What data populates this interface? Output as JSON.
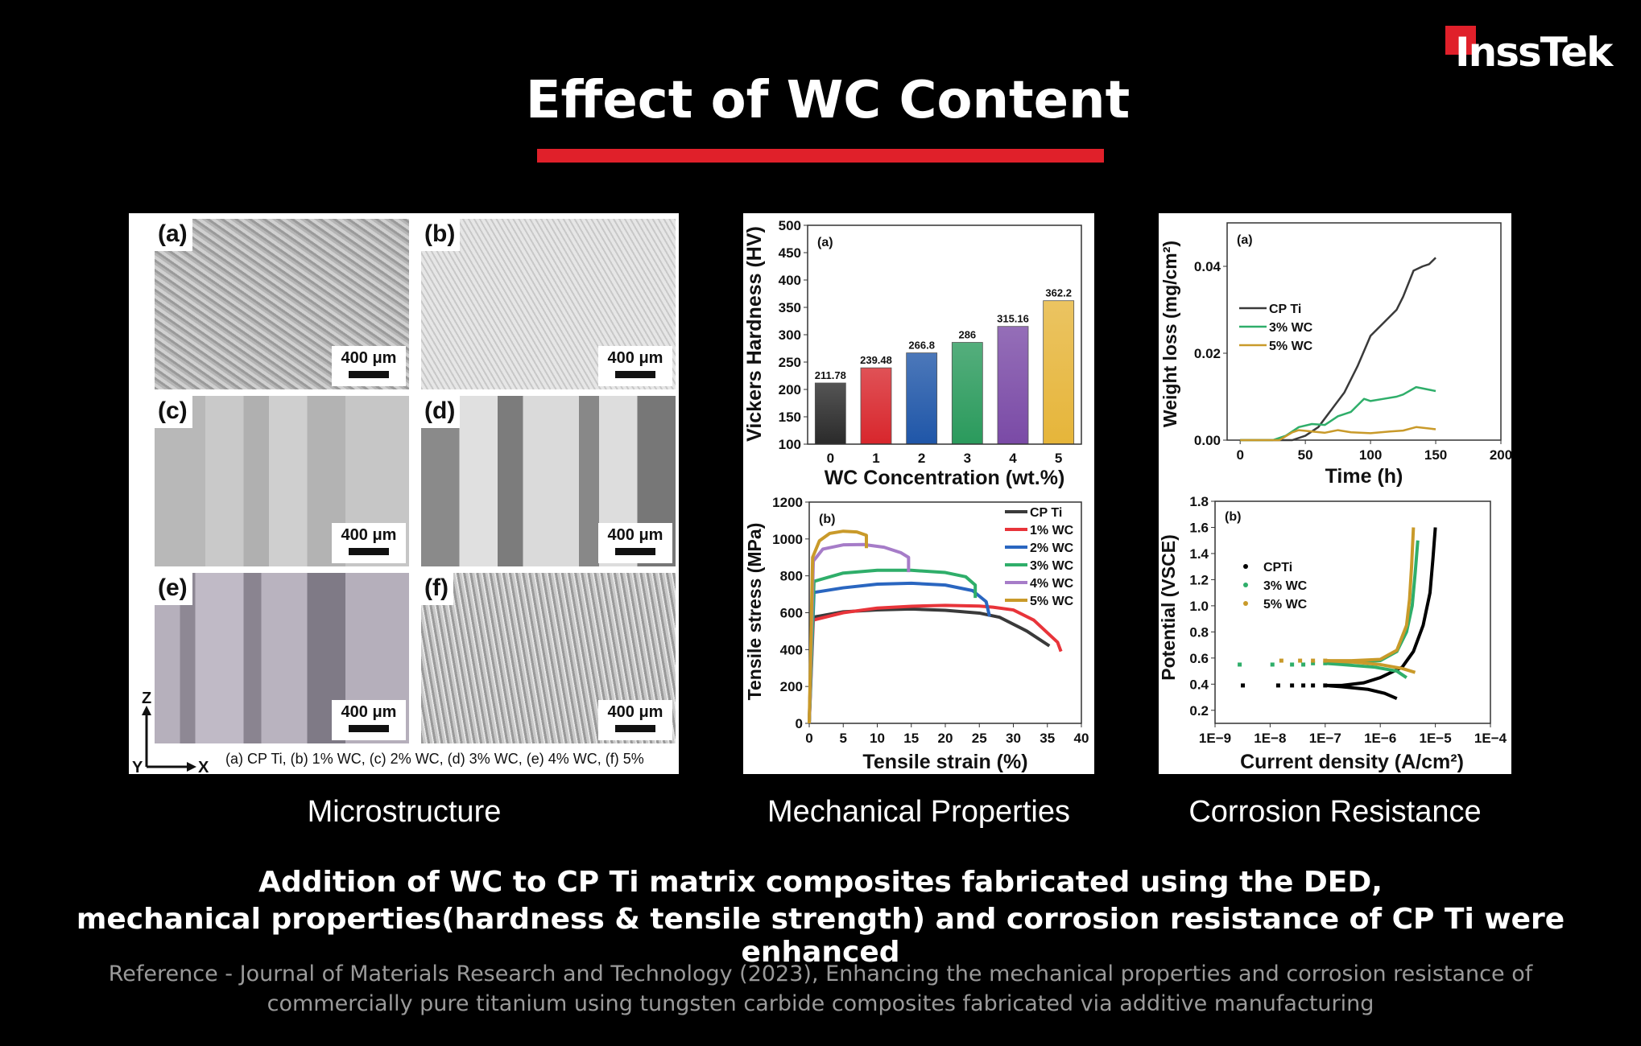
{
  "brand": {
    "logo_text": "InssTek",
    "accent": "#e0202a"
  },
  "title": "Effect of WC Content",
  "microstructure": {
    "tiles": [
      {
        "label": "(a)",
        "scale": "400 μm"
      },
      {
        "label": "(b)",
        "scale": "400 μm"
      },
      {
        "label": "(c)",
        "scale": "400 μm"
      },
      {
        "label": "(d)",
        "scale": "400 μm"
      },
      {
        "label": "(e)",
        "scale": "400 μm"
      },
      {
        "label": "(f)",
        "scale": "400 μm"
      }
    ],
    "axes": {
      "z": "Z",
      "y": "Y",
      "x": "X"
    },
    "caption": "(a) CP Ti, (b) 1% WC, (c) 2% WC, (d) 3% WC, (e) 4% WC, (f) 5%"
  },
  "section_labels": [
    "Microstructure",
    "Mechanical Properties",
    "Corrosion Resistance"
  ],
  "summary": [
    "Addition of WC to CP Ti matrix composites fabricated using the DED,",
    "mechanical properties(hardness & tensile strength) and corrosion resistance of CP Ti were enhanced"
  ],
  "reference": [
    "Reference - Journal of Materials Research and Technology (2023), Enhancing the mechanical properties and corrosion resistance of",
    "commercially pure titanium using tungsten carbide composites fabricated via additive manufacturing"
  ],
  "chart_data": [
    {
      "type": "bar",
      "panel": "(a)",
      "categories": [
        "0",
        "1",
        "2",
        "3",
        "4",
        "5"
      ],
      "values": [
        211.78,
        239.48,
        266.8,
        286,
        315.16,
        362.2
      ],
      "data_labels": [
        "211.78",
        "239.48",
        "266.8",
        "286",
        "315.16",
        "362.2"
      ],
      "colors": [
        "#2a2a2a",
        "#d8262c",
        "#1f56a8",
        "#2a9a5c",
        "#7a4aa6",
        "#e6b53a"
      ],
      "xlabel": "WC Concentration (wt.%)",
      "ylabel": "Vickers Hardness (HV)",
      "ylim": [
        100,
        500
      ],
      "yticks": [
        100,
        150,
        200,
        250,
        300,
        350,
        400,
        450,
        500
      ]
    },
    {
      "type": "line",
      "panel": "(b)",
      "xlabel": "Tensile strain (%)",
      "ylabel": "Tensile stress (MPa)",
      "xlim": [
        0,
        40
      ],
      "ylim": [
        0,
        1200
      ],
      "xticks": [
        0,
        5,
        10,
        15,
        20,
        25,
        30,
        35,
        40
      ],
      "yticks": [
        0,
        200,
        400,
        600,
        800,
        1000,
        1200
      ],
      "legend": "top-right",
      "series": [
        {
          "name": "CP Ti",
          "color": "#3a3a3a",
          "points": [
            [
              0,
              0
            ],
            [
              0.3,
              400
            ],
            [
              0.5,
              575
            ],
            [
              5,
              605
            ],
            [
              10,
              615
            ],
            [
              15,
              620
            ],
            [
              20,
              613
            ],
            [
              25,
              598
            ],
            [
              28,
              575
            ],
            [
              32,
              500
            ],
            [
              35.3,
              420
            ]
          ]
        },
        {
          "name": "1% WC",
          "color": "#e8343a",
          "points": [
            [
              0,
              0
            ],
            [
              0.6,
              560
            ],
            [
              5,
              600
            ],
            [
              10,
              625
            ],
            [
              15,
              635
            ],
            [
              20,
              640
            ],
            [
              25,
              636
            ],
            [
              27,
              630
            ],
            [
              30,
              615
            ],
            [
              33,
              560
            ],
            [
              36.5,
              440
            ],
            [
              37,
              390
            ]
          ]
        },
        {
          "name": "2% WC",
          "color": "#2a66c0",
          "points": [
            [
              0,
              0
            ],
            [
              0.7,
              710
            ],
            [
              5,
              735
            ],
            [
              10,
              755
            ],
            [
              15,
              760
            ],
            [
              20,
              750
            ],
            [
              24,
              720
            ],
            [
              26,
              660
            ],
            [
              26.5,
              580
            ]
          ]
        },
        {
          "name": "3% WC",
          "color": "#2fae6a",
          "points": [
            [
              0,
              0
            ],
            [
              0.7,
              770
            ],
            [
              5,
              815
            ],
            [
              10,
              830
            ],
            [
              15,
              830
            ],
            [
              20,
              818
            ],
            [
              23,
              795
            ],
            [
              24.4,
              750
            ],
            [
              24.4,
              680
            ]
          ]
        },
        {
          "name": "4% WC",
          "color": "#a67cc8",
          "points": [
            [
              0,
              0
            ],
            [
              0.6,
              880
            ],
            [
              2,
              945
            ],
            [
              5,
              968
            ],
            [
              8,
              970
            ],
            [
              11,
              955
            ],
            [
              13.5,
              925
            ],
            [
              14.6,
              900
            ],
            [
              14.6,
              820
            ]
          ]
        },
        {
          "name": "5% WC",
          "color": "#c99a2a",
          "points": [
            [
              0,
              0
            ],
            [
              0.5,
              900
            ],
            [
              1.5,
              990
            ],
            [
              3,
              1030
            ],
            [
              5,
              1042
            ],
            [
              7,
              1038
            ],
            [
              8.4,
              1020
            ],
            [
              8.4,
              950
            ]
          ]
        }
      ]
    },
    {
      "type": "line",
      "panel": "(a)",
      "xlabel": "Time (h)",
      "ylabel": "Weight loss (mg/cm²)",
      "xlim": [
        -10,
        200
      ],
      "ylim": [
        0,
        0.05
      ],
      "xticks": [
        0,
        50,
        100,
        150,
        200
      ],
      "yticks": [
        "0.00",
        "0.02",
        "0.04"
      ],
      "legend": "left",
      "series": [
        {
          "name": "CP Ti",
          "color": "#3a3a3a",
          "points": [
            [
              0,
              0
            ],
            [
              40,
              0
            ],
            [
              50,
              0.001
            ],
            [
              60,
              0.003
            ],
            [
              70,
              0.007
            ],
            [
              80,
              0.011
            ],
            [
              90,
              0.017
            ],
            [
              100,
              0.024
            ],
            [
              110,
              0.027
            ],
            [
              120,
              0.03
            ],
            [
              125,
              0.033
            ],
            [
              133,
              0.039
            ],
            [
              140,
              0.04
            ],
            [
              145,
              0.0405
            ],
            [
              150,
              0.042
            ]
          ]
        },
        {
          "name": "3% WC",
          "color": "#2fae6a",
          "points": [
            [
              0,
              0
            ],
            [
              25,
              0
            ],
            [
              35,
              0.001
            ],
            [
              45,
              0.003
            ],
            [
              55,
              0.0037
            ],
            [
              65,
              0.0035
            ],
            [
              75,
              0.0055
            ],
            [
              85,
              0.0065
            ],
            [
              95,
              0.0095
            ],
            [
              100,
              0.009
            ],
            [
              110,
              0.0095
            ],
            [
              120,
              0.01
            ],
            [
              125,
              0.0105
            ],
            [
              135,
              0.0122
            ],
            [
              150,
              0.0113
            ]
          ]
        },
        {
          "name": "5% WC",
          "color": "#c99a2a",
          "points": [
            [
              0,
              0
            ],
            [
              30,
              0
            ],
            [
              40,
              0.0018
            ],
            [
              45,
              0.0023
            ],
            [
              55,
              0.002
            ],
            [
              65,
              0.0017
            ],
            [
              75,
              0.0023
            ],
            [
              85,
              0.0018
            ],
            [
              100,
              0.0016
            ],
            [
              115,
              0.002
            ],
            [
              125,
              0.0022
            ],
            [
              135,
              0.003
            ],
            [
              150,
              0.0025
            ]
          ]
        }
      ]
    },
    {
      "type": "scatter",
      "panel": "(b)",
      "xlabel": "Current density (A/cm²)",
      "ylabel": "Potential (VSCE)",
      "xscale": "log",
      "xlim": [
        1e-09,
        0.0001
      ],
      "ylim": [
        0.1,
        1.8
      ],
      "xticks": [
        "1E−9",
        "1E−8",
        "1E−7",
        "1E−6",
        "1E−5",
        "1E−4"
      ],
      "yticks": [
        "0.2",
        "0.4",
        "0.6",
        "0.8",
        "1.0",
        "1.2",
        "1.4",
        "1.6",
        "1.8"
      ],
      "legend": "left",
      "series": [
        {
          "name": "CPTi",
          "color": "#000000",
          "points": [
            [
              3.2e-09,
              0.39
            ],
            [
              1.4e-08,
              0.39
            ],
            [
              2.5e-08,
              0.39
            ],
            [
              4e-08,
              0.39
            ],
            [
              6e-08,
              0.39
            ],
            [
              1e-07,
              0.39
            ],
            [
              2e-07,
              0.39
            ],
            [
              5e-07,
              0.41
            ],
            [
              1e-06,
              0.45
            ],
            [
              2.5e-06,
              0.53
            ],
            [
              4e-06,
              0.65
            ],
            [
              6e-06,
              0.85
            ],
            [
              8e-06,
              1.1
            ],
            [
              9e-06,
              1.35
            ],
            [
              1e-05,
              1.6
            ]
          ],
          "cathodic": [
            [
              2e-07,
              0.38
            ],
            [
              6e-07,
              0.36
            ],
            [
              1.2e-06,
              0.33
            ],
            [
              2e-06,
              0.29
            ]
          ]
        },
        {
          "name": "3% WC",
          "color": "#2fae6a",
          "points": [
            [
              2.8e-09,
              0.55
            ],
            [
              1.1e-08,
              0.55
            ],
            [
              2.5e-08,
              0.55
            ],
            [
              4e-08,
              0.55
            ],
            [
              6e-08,
              0.56
            ],
            [
              1e-07,
              0.56
            ],
            [
              3e-07,
              0.57
            ],
            [
              1e-06,
              0.58
            ],
            [
              2e-06,
              0.65
            ],
            [
              3e-06,
              0.8
            ],
            [
              3.8e-06,
              1.0
            ],
            [
              4.3e-06,
              1.25
            ],
            [
              4.8e-06,
              1.5
            ]
          ],
          "cathodic": [
            [
              2e-07,
              0.55
            ],
            [
              8e-07,
              0.53
            ],
            [
              2e-06,
              0.5
            ],
            [
              3e-06,
              0.45
            ]
          ]
        },
        {
          "name": "5% WC",
          "color": "#c99a2a",
          "points": [
            [
              1.6e-08,
              0.58
            ],
            [
              3.5e-08,
              0.58
            ],
            [
              6e-08,
              0.58
            ],
            [
              1e-07,
              0.58
            ],
            [
              3e-07,
              0.58
            ],
            [
              1e-06,
              0.59
            ],
            [
              2e-06,
              0.66
            ],
            [
              3e-06,
              0.85
            ],
            [
              3.4e-06,
              1.05
            ],
            [
              3.7e-06,
              1.3
            ],
            [
              4e-06,
              1.6
            ]
          ],
          "cathodic": [
            [
              3e-07,
              0.57
            ],
            [
              1e-06,
              0.55
            ],
            [
              2.5e-06,
              0.52
            ],
            [
              4.3e-06,
              0.49
            ]
          ]
        }
      ]
    }
  ]
}
